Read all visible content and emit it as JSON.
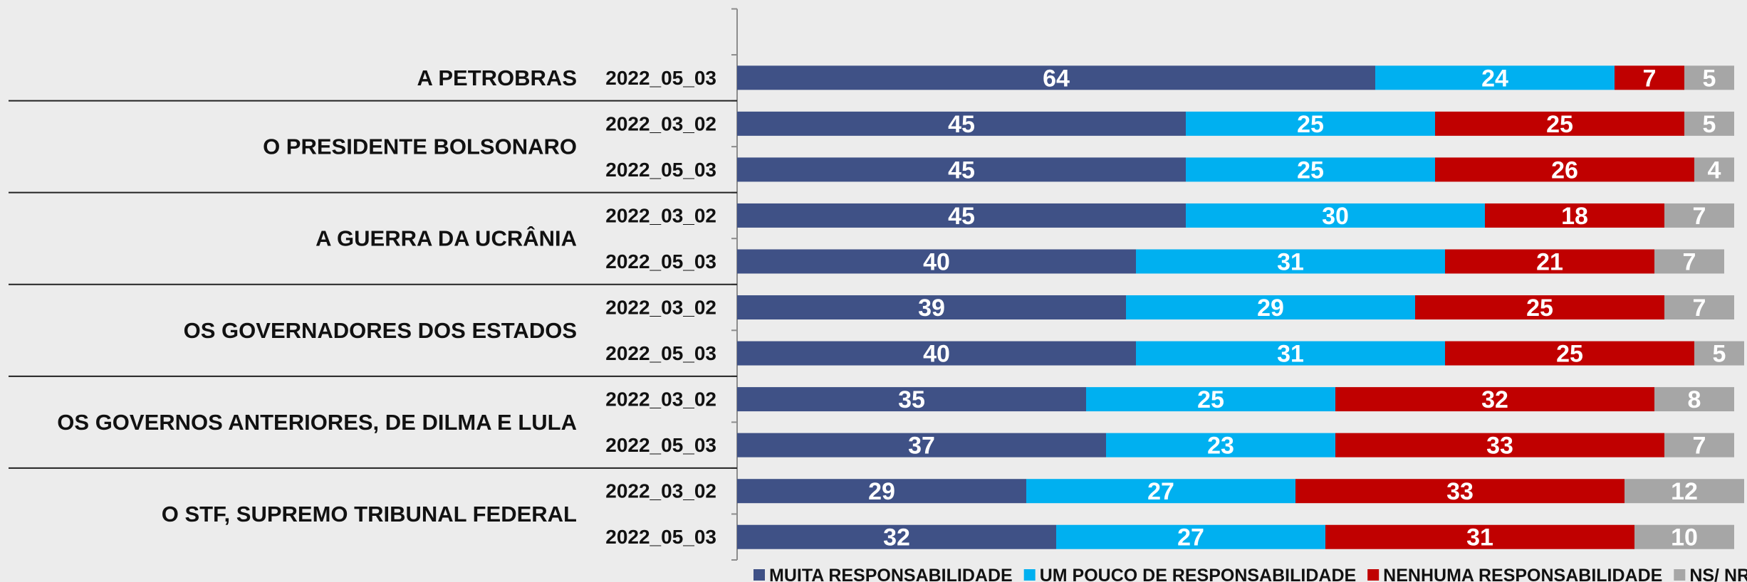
{
  "chart_data": {
    "type": "bar",
    "orientation": "horizontal",
    "stacked": true,
    "xlim": [
      0,
      100
    ],
    "groups": [
      {
        "label": "A PETROBRAS",
        "categories": [
          "2022_05_03"
        ]
      },
      {
        "label": "O PRESIDENTE BOLSONARO",
        "categories": [
          "2022_03_02",
          "2022_05_03"
        ]
      },
      {
        "label": "A GUERRA DA UCRÂNIA",
        "categories": [
          "2022_03_02",
          "2022_05_03"
        ]
      },
      {
        "label": "OS GOVERNADORES DOS ESTADOS",
        "categories": [
          "2022_03_02",
          "2022_05_03"
        ]
      },
      {
        "label": "OS GOVERNOS ANTERIORES, DE DILMA E LULA",
        "categories": [
          "2022_03_02",
          "2022_05_03"
        ]
      },
      {
        "label": "O STF, SUPREMO TRIBUNAL FEDERAL",
        "categories": [
          "2022_03_02",
          "2022_05_03"
        ]
      }
    ],
    "series": [
      {
        "name": "MUITA RESPONSABILIDADE",
        "color": "#3f5186",
        "values": [
          64,
          45,
          45,
          45,
          40,
          39,
          40,
          35,
          37,
          29,
          32
        ]
      },
      {
        "name": "UM POUCO DE RESPONSABILIDADE",
        "color": "#00b0f0",
        "values": [
          24,
          25,
          25,
          30,
          31,
          29,
          31,
          25,
          23,
          27,
          27
        ]
      },
      {
        "name": "NENHUMA RESPONSABILIDADE",
        "color": "#c00000",
        "values": [
          7,
          25,
          26,
          18,
          21,
          25,
          25,
          32,
          33,
          33,
          31
        ]
      },
      {
        "name": "NS/ NR",
        "color": "#a6a6a6",
        "values": [
          5,
          5,
          4,
          7,
          7,
          7,
          5,
          8,
          7,
          12,
          10
        ]
      }
    ],
    "legend": "bottom"
  }
}
